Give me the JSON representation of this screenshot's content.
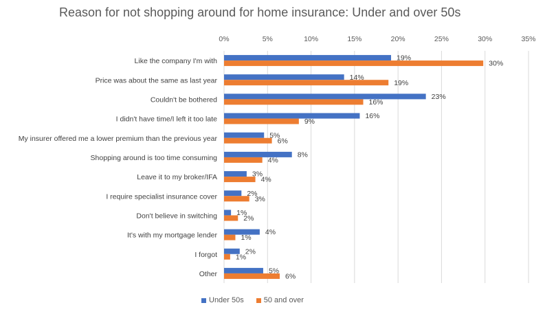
{
  "chart_data": {
    "type": "bar",
    "orientation": "horizontal",
    "title": "Reason for not shopping around for home insurance: Under and over 50s",
    "categories": [
      "Like the company I'm with",
      "Price was about the same as last year",
      "Couldn't be bothered",
      "I didn't have time/I left it too late",
      "My insurer offered me a lower premium than the previous year",
      "Shopping around is too time consuming",
      "Leave it to my broker/IFA",
      "I require specialist insurance cover",
      "Don't believe in switching",
      "It's with my mortgage lender",
      "I forgot",
      "Other"
    ],
    "series": [
      {
        "name": "Under 50s",
        "color": "#4472C4",
        "values": [
          19.2,
          13.8,
          23.2,
          15.6,
          4.6,
          7.8,
          2.6,
          2.0,
          0.8,
          4.1,
          1.8,
          4.5
        ],
        "labels": [
          "19%",
          "14%",
          "23%",
          "16%",
          "5%",
          "8%",
          "3%",
          "2%",
          "1%",
          "4%",
          "2%",
          "5%"
        ]
      },
      {
        "name": "50 and over",
        "color": "#ED7D31",
        "values": [
          29.8,
          18.9,
          16.0,
          8.6,
          5.5,
          4.4,
          3.6,
          2.9,
          1.6,
          1.3,
          0.7,
          6.4
        ],
        "labels": [
          "30%",
          "19%",
          "16%",
          "9%",
          "6%",
          "4%",
          "4%",
          "3%",
          "2%",
          "1%",
          "1%",
          "6%"
        ]
      }
    ],
    "xlim": [
      0,
      35
    ],
    "xticks": [
      0,
      5,
      10,
      15,
      20,
      25,
      30,
      35
    ],
    "xtick_labels": [
      "0%",
      "5%",
      "10%",
      "15%",
      "20%",
      "25%",
      "30%",
      "35%"
    ],
    "xaxis_position": "top",
    "grid": true,
    "legend_position": "bottom"
  }
}
